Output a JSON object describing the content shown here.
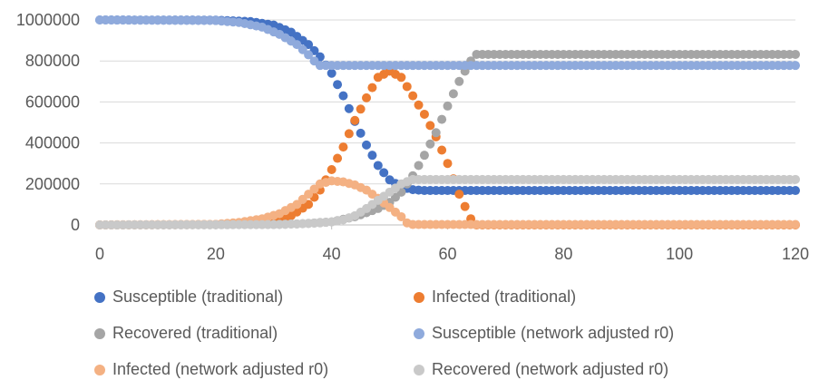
{
  "chart_data": {
    "type": "scatter",
    "title": "",
    "xlabel": "",
    "ylabel": "",
    "xlim": [
      0,
      120
    ],
    "ylim": [
      0,
      1000000
    ],
    "x_ticks": [
      "0",
      "20",
      "40",
      "60",
      "80",
      "100",
      "120"
    ],
    "y_ticks": [
      "0",
      "200000",
      "400000",
      "600000",
      "800000",
      "1000000"
    ],
    "grid": "horizontal",
    "legend_position": "bottom",
    "x_step": 1,
    "series": [
      {
        "name": "Susceptible (traditional)",
        "color": "#4472C4",
        "key_points": [
          [
            0,
            1000000
          ],
          [
            20,
            999000
          ],
          [
            26,
            992000
          ],
          [
            30,
            975000
          ],
          [
            33,
            940000
          ],
          [
            36,
            880000
          ],
          [
            38,
            820000
          ],
          [
            40,
            740000
          ],
          [
            42,
            630000
          ],
          [
            44,
            505000
          ],
          [
            46,
            390000
          ],
          [
            48,
            290000
          ],
          [
            50,
            220000
          ],
          [
            52,
            185000
          ],
          [
            54,
            172000
          ],
          [
            56,
            168000
          ],
          [
            120,
            168000
          ]
        ]
      },
      {
        "name": "Infected (traditional)",
        "color": "#ED7D31",
        "key_points": [
          [
            0,
            0
          ],
          [
            20,
            2000
          ],
          [
            25,
            8000
          ],
          [
            30,
            20000
          ],
          [
            33,
            45000
          ],
          [
            36,
            100000
          ],
          [
            38,
            170000
          ],
          [
            40,
            270000
          ],
          [
            42,
            380000
          ],
          [
            44,
            510000
          ],
          [
            46,
            620000
          ],
          [
            48,
            720000
          ],
          [
            50,
            750000
          ],
          [
            52,
            720000
          ],
          [
            54,
            630000
          ],
          [
            56,
            540000
          ],
          [
            58,
            430000
          ],
          [
            60,
            300000
          ],
          [
            62,
            150000
          ],
          [
            64,
            30000
          ],
          [
            65,
            0
          ],
          [
            120,
            0
          ]
        ]
      },
      {
        "name": "Recovered (traditional)",
        "color": "#A5A5A5",
        "key_points": [
          [
            0,
            0
          ],
          [
            30,
            2000
          ],
          [
            35,
            6000
          ],
          [
            40,
            15000
          ],
          [
            44,
            40000
          ],
          [
            48,
            80000
          ],
          [
            50,
            110000
          ],
          [
            52,
            160000
          ],
          [
            54,
            240000
          ],
          [
            56,
            340000
          ],
          [
            58,
            450000
          ],
          [
            60,
            580000
          ],
          [
            62,
            700000
          ],
          [
            64,
            800000
          ],
          [
            65,
            832000
          ],
          [
            120,
            832000
          ]
        ]
      },
      {
        "name": "Susceptible (network adjusted r0)",
        "color": "#8FAADC",
        "key_points": [
          [
            0,
            1000000
          ],
          [
            20,
            997000
          ],
          [
            24,
            988000
          ],
          [
            28,
            965000
          ],
          [
            31,
            930000
          ],
          [
            34,
            880000
          ],
          [
            36,
            830000
          ],
          [
            37,
            800000
          ],
          [
            38,
            778000
          ],
          [
            120,
            778000
          ]
        ]
      },
      {
        "name": "Infected (network adjusted r0)",
        "color": "#F4B183",
        "key_points": [
          [
            0,
            0
          ],
          [
            20,
            3000
          ],
          [
            24,
            12000
          ],
          [
            28,
            30000
          ],
          [
            31,
            55000
          ],
          [
            34,
            100000
          ],
          [
            36,
            150000
          ],
          [
            38,
            200000
          ],
          [
            40,
            215000
          ],
          [
            42,
            210000
          ],
          [
            44,
            195000
          ],
          [
            46,
            170000
          ],
          [
            48,
            130000
          ],
          [
            50,
            85000
          ],
          [
            52,
            40000
          ],
          [
            53,
            10000
          ],
          [
            54,
            2000
          ],
          [
            120,
            2000
          ]
        ]
      },
      {
        "name": "Recovered (network adjusted r0)",
        "color": "#C9C9C9",
        "key_points": [
          [
            0,
            0
          ],
          [
            30,
            2000
          ],
          [
            35,
            6000
          ],
          [
            38,
            10000
          ],
          [
            40,
            15000
          ],
          [
            42,
            25000
          ],
          [
            44,
            45000
          ],
          [
            46,
            80000
          ],
          [
            48,
            120000
          ],
          [
            50,
            160000
          ],
          [
            52,
            200000
          ],
          [
            54,
            222000
          ],
          [
            120,
            222000
          ]
        ]
      }
    ]
  }
}
